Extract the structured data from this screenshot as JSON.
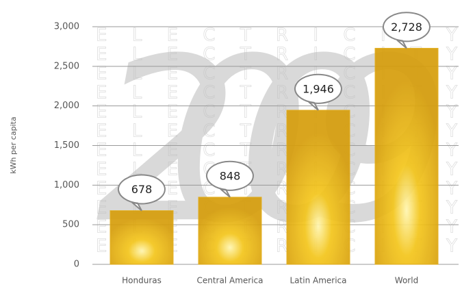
{
  "chart_data": {
    "type": "bar",
    "background_text": "2009",
    "pattern_text": "ELECTRICITY",
    "y_label": "kWh per capita",
    "categories": [
      "Honduras",
      "Central America",
      "Latin America",
      "World"
    ],
    "values": [
      678,
      848,
      1946,
      2728
    ],
    "value_labels": [
      "678",
      "848",
      "1,946",
      "2,728"
    ],
    "color": "#e2ab12",
    "ylim": [
      0,
      3000
    ],
    "yticks": [
      0,
      500,
      {
        "value": 1000,
        "label": "1,000"
      },
      {
        "value": 1500,
        "label": "1,500"
      },
      {
        "value": 2000,
        "label": "2,000"
      },
      {
        "value": 2500,
        "label": "2,500"
      },
      {
        "value": 3000,
        "label": "3,000"
      }
    ],
    "grid": true
  }
}
